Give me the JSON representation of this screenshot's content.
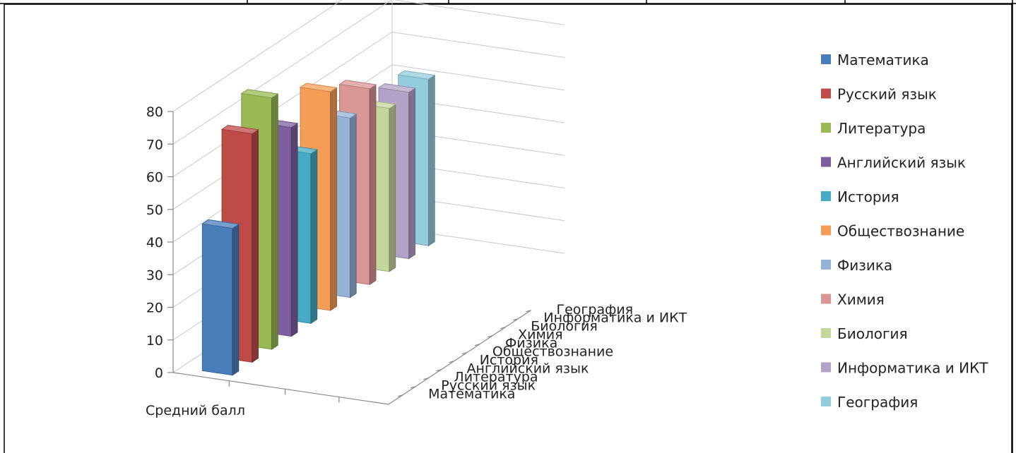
{
  "chart_data": {
    "type": "bar",
    "style": "3d-column",
    "title": "",
    "xlabel": "",
    "ylabel": "",
    "ylim": [
      0,
      80
    ],
    "yticks": [
      0,
      10,
      20,
      30,
      40,
      50,
      60,
      70,
      80
    ],
    "grid": true,
    "legend": "right",
    "x_category": "Средний балл",
    "series": [
      {
        "name": "Математика",
        "value": 45,
        "color": "#4a7ebb"
      },
      {
        "name": "Русский язык",
        "value": 70,
        "color": "#be4b48"
      },
      {
        "name": "Литература",
        "value": 77,
        "color": "#98b954"
      },
      {
        "name": "Английский язык",
        "value": 64,
        "color": "#7d5fa0"
      },
      {
        "name": "История",
        "value": 52,
        "color": "#46aac5"
      },
      {
        "name": "Обществознание",
        "value": 67,
        "color": "#f59d56"
      },
      {
        "name": "Физика",
        "value": 55,
        "color": "#95b3d7"
      },
      {
        "name": "Химия",
        "value": 60,
        "color": "#d99694"
      },
      {
        "name": "Биология",
        "value": 50,
        "color": "#c3d69b"
      },
      {
        "name": "Информатика и ИКТ",
        "value": 51,
        "color": "#b3a2c7"
      },
      {
        "name": "География",
        "value": 51,
        "color": "#93cddd"
      }
    ]
  }
}
